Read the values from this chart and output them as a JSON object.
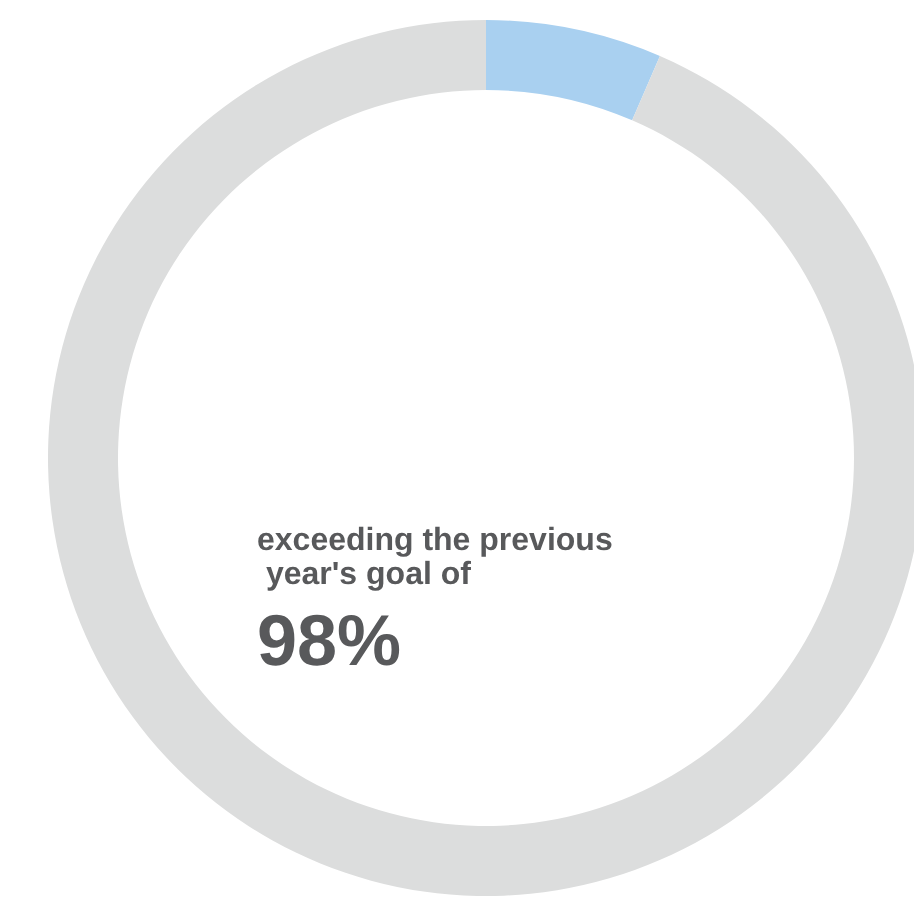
{
  "chart_data": {
    "type": "donut",
    "categories": [
      null,
      null
    ],
    "values": [
      6.5,
      93.5
    ],
    "colors": [
      "#a9d0f0",
      "#dcdddd"
    ],
    "annotations": [
      "exceeding the previous year's goal of",
      "98%"
    ]
  }
}
